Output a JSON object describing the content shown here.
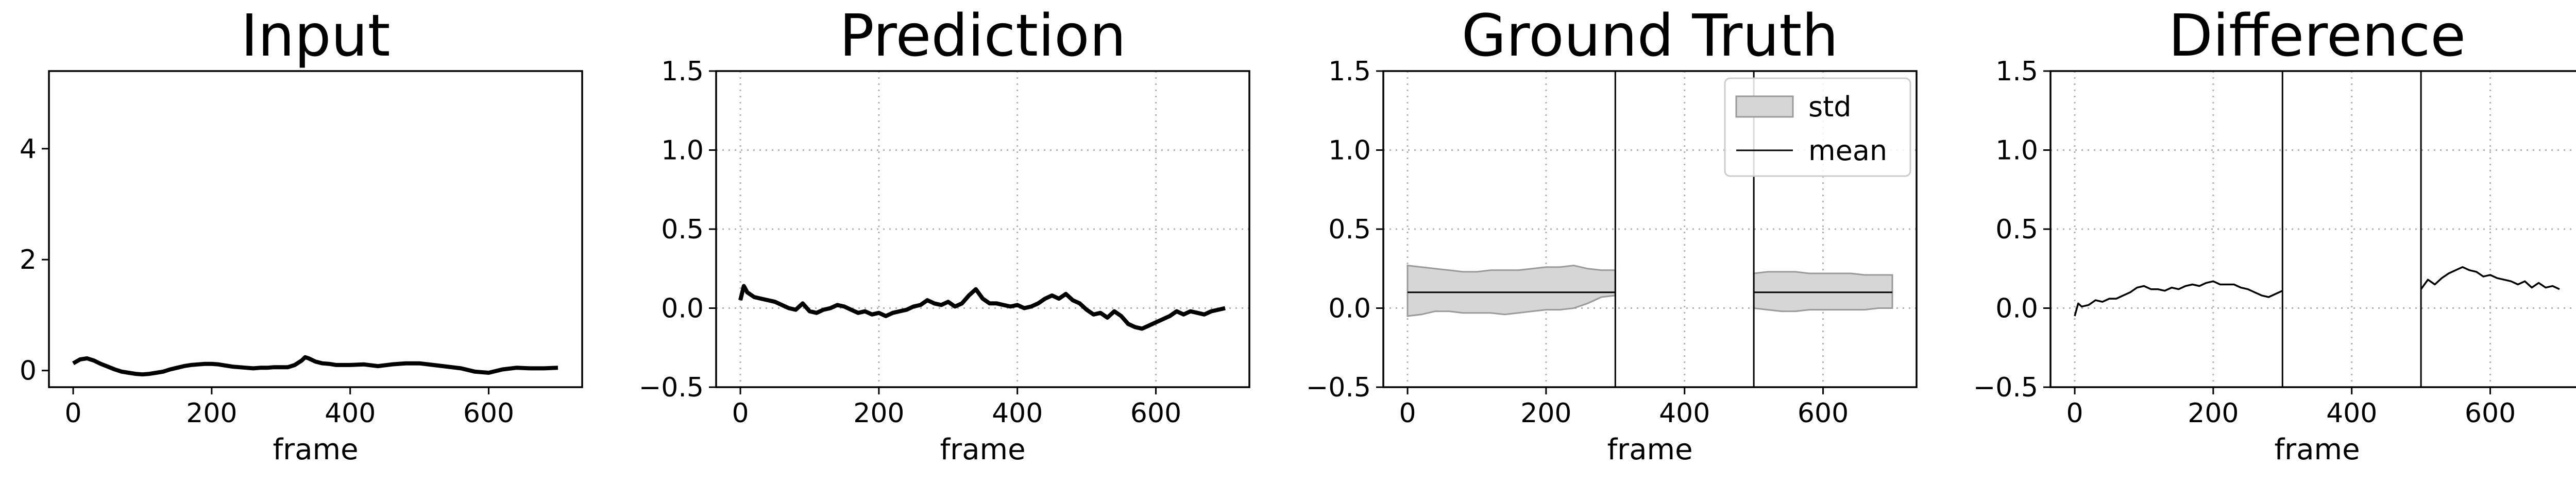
{
  "chart_data": [
    {
      "type": "line",
      "title": "Input",
      "xlabel": "frame",
      "ylabel": "",
      "xlim": [
        -35,
        735
      ],
      "ylim": [
        -0.3,
        5.4
      ],
      "xticks": [
        0,
        200,
        400,
        600
      ],
      "yticks": [
        0,
        2,
        4
      ],
      "grid": false,
      "series": [
        {
          "color": "#000000",
          "x": [
            0,
            10,
            20,
            30,
            40,
            50,
            60,
            70,
            80,
            90,
            100,
            110,
            120,
            130,
            140,
            150,
            160,
            170,
            180,
            190,
            200,
            210,
            220,
            230,
            240,
            250,
            260,
            270,
            280,
            290,
            300,
            310,
            320,
            330,
            335,
            340,
            350,
            360,
            370,
            380,
            390,
            400,
            420,
            440,
            460,
            480,
            500,
            520,
            540,
            560,
            580,
            600,
            620,
            640,
            660,
            680,
            700
          ],
          "y": [
            0.13,
            0.2,
            0.22,
            0.18,
            0.12,
            0.07,
            0.02,
            -0.02,
            -0.04,
            -0.06,
            -0.07,
            -0.06,
            -0.04,
            -0.02,
            0.02,
            0.05,
            0.08,
            0.1,
            0.11,
            0.12,
            0.12,
            0.11,
            0.09,
            0.07,
            0.06,
            0.05,
            0.04,
            0.05,
            0.05,
            0.06,
            0.06,
            0.06,
            0.1,
            0.18,
            0.24,
            0.22,
            0.16,
            0.13,
            0.12,
            0.1,
            0.1,
            0.1,
            0.11,
            0.08,
            0.11,
            0.13,
            0.13,
            0.1,
            0.07,
            0.04,
            -0.02,
            -0.04,
            0.02,
            0.05,
            0.04,
            0.04,
            0.05
          ]
        }
      ]
    },
    {
      "type": "line",
      "title": "Prediction",
      "xlabel": "frame",
      "ylabel": "",
      "xlim": [
        -35,
        735
      ],
      "ylim": [
        -0.5,
        1.5
      ],
      "xticks": [
        0,
        200,
        400,
        600
      ],
      "yticks": [
        -0.5,
        0.0,
        0.5,
        1.0,
        1.5
      ],
      "grid": true,
      "series": [
        {
          "color": "#000000",
          "x": [
            0,
            5,
            10,
            20,
            30,
            40,
            50,
            60,
            70,
            80,
            90,
            100,
            110,
            120,
            130,
            140,
            150,
            160,
            170,
            180,
            190,
            200,
            210,
            220,
            230,
            240,
            250,
            260,
            270,
            280,
            290,
            300,
            310,
            320,
            330,
            340,
            350,
            360,
            370,
            380,
            390,
            400,
            410,
            420,
            430,
            440,
            450,
            460,
            470,
            480,
            490,
            500,
            510,
            520,
            530,
            540,
            550,
            560,
            570,
            580,
            590,
            600,
            610,
            620,
            630,
            640,
            650,
            660,
            670,
            680,
            690,
            700
          ],
          "y": [
            0.05,
            0.14,
            0.1,
            0.07,
            0.06,
            0.05,
            0.04,
            0.02,
            0.0,
            -0.01,
            0.03,
            -0.02,
            -0.03,
            -0.01,
            0.0,
            0.02,
            0.01,
            -0.01,
            -0.03,
            -0.02,
            -0.04,
            -0.03,
            -0.05,
            -0.03,
            -0.02,
            -0.01,
            0.01,
            0.02,
            0.05,
            0.03,
            0.02,
            0.04,
            0.01,
            0.03,
            0.08,
            0.12,
            0.06,
            0.03,
            0.03,
            0.02,
            0.01,
            0.02,
            0.0,
            0.01,
            0.03,
            0.06,
            0.08,
            0.06,
            0.09,
            0.05,
            0.03,
            -0.01,
            -0.04,
            -0.03,
            -0.06,
            -0.02,
            -0.05,
            -0.1,
            -0.12,
            -0.13,
            -0.11,
            -0.09,
            -0.07,
            -0.05,
            -0.02,
            -0.04,
            -0.02,
            -0.03,
            -0.04,
            -0.02,
            -0.01,
            0.0
          ]
        }
      ]
    },
    {
      "type": "area",
      "title": "Ground Truth",
      "xlabel": "frame",
      "ylabel": "",
      "xlim": [
        -35,
        735
      ],
      "ylim": [
        -0.5,
        1.5
      ],
      "xticks": [
        0,
        200,
        400,
        600
      ],
      "yticks": [
        -0.5,
        0.0,
        0.5,
        1.0,
        1.5
      ],
      "grid": true,
      "legend": {
        "position": "top-right",
        "entries": [
          {
            "label": "std",
            "kind": "patch"
          },
          {
            "label": "mean",
            "kind": "line"
          }
        ]
      },
      "segments": [
        {
          "x": [
            0,
            20,
            40,
            60,
            80,
            100,
            120,
            140,
            160,
            180,
            200,
            220,
            240,
            260,
            280,
            300
          ],
          "mean": [
            0.1,
            0.1,
            0.1,
            0.1,
            0.1,
            0.1,
            0.1,
            0.1,
            0.1,
            0.1,
            0.1,
            0.1,
            0.1,
            0.1,
            0.1,
            0.1
          ],
          "upper": [
            0.27,
            0.26,
            0.25,
            0.24,
            0.23,
            0.23,
            0.24,
            0.24,
            0.24,
            0.25,
            0.26,
            0.26,
            0.27,
            0.25,
            0.24,
            0.24
          ],
          "lower": [
            -0.05,
            -0.04,
            -0.02,
            -0.02,
            -0.03,
            -0.03,
            -0.03,
            -0.04,
            -0.03,
            -0.02,
            -0.01,
            -0.01,
            0.0,
            0.03,
            0.07,
            0.08
          ]
        },
        {
          "x": [
            500,
            520,
            540,
            560,
            580,
            600,
            620,
            640,
            660,
            680,
            700
          ],
          "mean": [
            0.1,
            0.1,
            0.1,
            0.1,
            0.1,
            0.1,
            0.1,
            0.1,
            0.1,
            0.1,
            0.1
          ],
          "upper": [
            0.22,
            0.23,
            0.23,
            0.23,
            0.22,
            0.22,
            0.22,
            0.22,
            0.21,
            0.21,
            0.21
          ],
          "lower": [
            0.0,
            -0.01,
            -0.02,
            -0.02,
            -0.01,
            -0.01,
            -0.01,
            -0.01,
            -0.01,
            0.0,
            0.0
          ]
        }
      ],
      "vertical_lines": [
        300,
        500
      ]
    },
    {
      "type": "line",
      "title": "Difference",
      "xlabel": "frame",
      "ylabel": "",
      "xlim": [
        -35,
        735
      ],
      "ylim": [
        -0.5,
        1.5
      ],
      "xticks": [
        0,
        200,
        400,
        600
      ],
      "yticks": [
        -0.5,
        0.0,
        0.5,
        1.0,
        1.5
      ],
      "grid": true,
      "vertical_lines": [
        300,
        500
      ],
      "series": [
        {
          "color": "#000000",
          "x": [
            0,
            5,
            10,
            20,
            30,
            40,
            50,
            60,
            70,
            80,
            90,
            100,
            110,
            120,
            130,
            140,
            150,
            160,
            170,
            180,
            190,
            200,
            210,
            220,
            230,
            240,
            250,
            260,
            270,
            280,
            290,
            300
          ],
          "y": [
            -0.05,
            0.03,
            0.01,
            0.02,
            0.05,
            0.04,
            0.06,
            0.06,
            0.08,
            0.1,
            0.13,
            0.14,
            0.12,
            0.12,
            0.11,
            0.13,
            0.12,
            0.14,
            0.15,
            0.14,
            0.16,
            0.17,
            0.15,
            0.15,
            0.15,
            0.13,
            0.12,
            0.1,
            0.08,
            0.07,
            0.09,
            0.11
          ]
        },
        {
          "color": "#000000",
          "x": [
            500,
            510,
            520,
            530,
            540,
            550,
            560,
            570,
            580,
            590,
            600,
            610,
            620,
            630,
            640,
            650,
            660,
            670,
            680,
            690,
            700
          ],
          "y": [
            0.12,
            0.18,
            0.15,
            0.19,
            0.22,
            0.24,
            0.26,
            0.24,
            0.23,
            0.2,
            0.21,
            0.19,
            0.18,
            0.17,
            0.15,
            0.17,
            0.13,
            0.16,
            0.13,
            0.14,
            0.12
          ]
        }
      ]
    }
  ]
}
